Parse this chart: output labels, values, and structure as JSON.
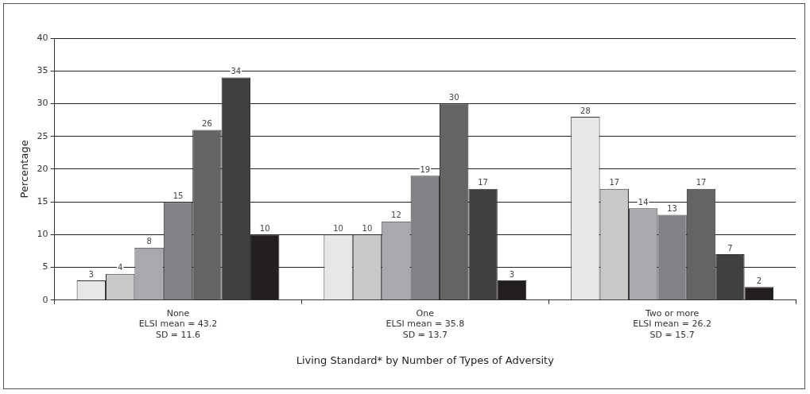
{
  "chart_data": {
    "type": "bar",
    "xlabel": "Living Standard* by Number of Types of Adversity",
    "ylabel": "Percentage",
    "categories": [
      "None\nELSI mean = 43.2\nSD = 11.6",
      "One\nELSI mean = 35.8\nSD = 13.7",
      "Two or more\nELSI mean = 26.2\nSD = 15.7"
    ],
    "series": [
      {
        "color": "#e6e7e8",
        "values": [
          3,
          10,
          28
        ]
      },
      {
        "color": "#c7c8ca",
        "values": [
          4,
          10,
          17
        ]
      },
      {
        "color": "#a7a9ac",
        "values": [
          8,
          12,
          14
        ]
      },
      {
        "color": "#808285",
        "values": [
          15,
          19,
          13
        ]
      },
      {
        "color": "#636466",
        "values": [
          26,
          30,
          17
        ]
      },
      {
        "color": "#404041",
        "values": [
          34,
          17,
          7
        ]
      },
      {
        "color": "#231f20",
        "values": [
          10,
          3,
          2
        ]
      }
    ],
    "ylim": [
      0,
      40
    ],
    "yticks": [
      0,
      5,
      10,
      15,
      20,
      25,
      30,
      35,
      40
    ],
    "grid": "y",
    "legend": false,
    "data_labels": true
  }
}
